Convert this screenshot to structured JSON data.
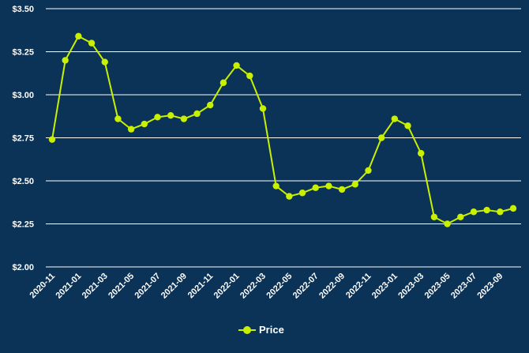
{
  "colors": {
    "background": "#0b3357",
    "series": "#c8f000",
    "grid": "#ffffff",
    "text": "#ffffff"
  },
  "chart_data": {
    "type": "line",
    "title": "",
    "xlabel": "",
    "ylabel": "",
    "ylim": [
      2.0,
      3.5
    ],
    "y_ticks": [
      2.0,
      2.25,
      2.5,
      2.75,
      3.0,
      3.25,
      3.5
    ],
    "y_tick_labels": [
      "$2.00",
      "$2.25",
      "$2.50",
      "$2.75",
      "$3.00",
      "$3.25",
      "$3.50"
    ],
    "grid": true,
    "legend_position": "bottom",
    "x": [
      "2020-11",
      "2020-12",
      "2021-01",
      "2021-02",
      "2021-03",
      "2021-04",
      "2021-05",
      "2021-06",
      "2021-07",
      "2021-08",
      "2021-09",
      "2021-10",
      "2021-11",
      "2021-12",
      "2022-01",
      "2022-02",
      "2022-03",
      "2022-04",
      "2022-05",
      "2022-06",
      "2022-07",
      "2022-08",
      "2022-09",
      "2022-10",
      "2022-11",
      "2022-12",
      "2023-01",
      "2023-02",
      "2023-03",
      "2023-04",
      "2023-05",
      "2023-06",
      "2023-07",
      "2023-08",
      "2023-09",
      "2023-10"
    ],
    "x_tick_labels": [
      "2020-11",
      "2021-01",
      "2021-03",
      "2021-05",
      "2021-07",
      "2021-09",
      "2021-11",
      "2022-01",
      "2022-03",
      "2022-05",
      "2022-07",
      "2022-09",
      "2022-11",
      "2023-01",
      "2023-03",
      "2023-05",
      "2023-07",
      "2023-09"
    ],
    "series": [
      {
        "name": "Price",
        "values": [
          2.74,
          3.2,
          3.34,
          3.3,
          3.19,
          2.86,
          2.8,
          2.83,
          2.87,
          2.88,
          2.86,
          2.89,
          2.94,
          3.07,
          3.17,
          3.11,
          2.92,
          2.47,
          2.41,
          2.43,
          2.46,
          2.47,
          2.45,
          2.48,
          2.56,
          2.75,
          2.86,
          2.82,
          2.66,
          2.29,
          2.25,
          2.29,
          2.32,
          2.33,
          2.32,
          2.34
        ]
      }
    ]
  }
}
